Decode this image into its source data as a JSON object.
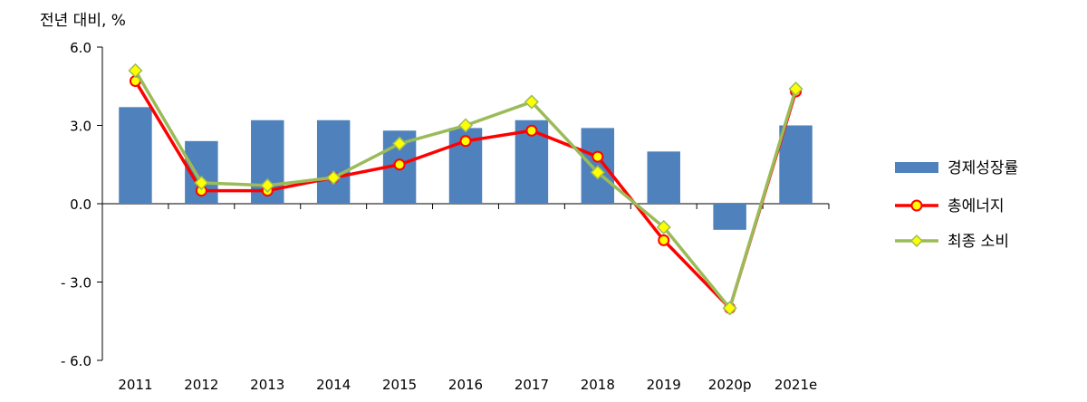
{
  "chart_data": {
    "type": "bar+line",
    "ylabel": "전년 대비, %",
    "ylim": [
      -6.0,
      6.0
    ],
    "yticks": [
      6.0,
      3.0,
      0.0,
      -3.0,
      -6.0
    ],
    "ytick_labels": [
      "6.0",
      "3.0",
      "0.0",
      "- 3.0",
      "- 6.0"
    ],
    "categories": [
      "2011",
      "2012",
      "2013",
      "2014",
      "2015",
      "2016",
      "2017",
      "2018",
      "2019",
      "2020p",
      "2021e"
    ],
    "series": [
      {
        "name": "경제성장률",
        "type": "bar",
        "color": "#4F81BD",
        "values": [
          3.7,
          2.4,
          3.2,
          3.2,
          2.8,
          2.9,
          3.2,
          2.9,
          2.0,
          -1.0,
          3.0
        ]
      },
      {
        "name": "총에너지",
        "type": "line",
        "color": "#FF0000",
        "marker": "circle",
        "marker_fill": "#FFFF00",
        "values": [
          4.7,
          0.5,
          0.5,
          1.0,
          1.5,
          2.4,
          2.8,
          1.8,
          -1.4,
          -4.0,
          4.3
        ]
      },
      {
        "name": "최종 소비",
        "type": "line",
        "color": "#9BBB59",
        "marker": "diamond",
        "marker_fill": "#FFFF00",
        "values": [
          5.1,
          0.8,
          0.7,
          1.0,
          2.3,
          3.0,
          3.9,
          1.2,
          -0.9,
          -4.0,
          4.4
        ]
      }
    ],
    "legend_position": "right",
    "grid": false
  }
}
